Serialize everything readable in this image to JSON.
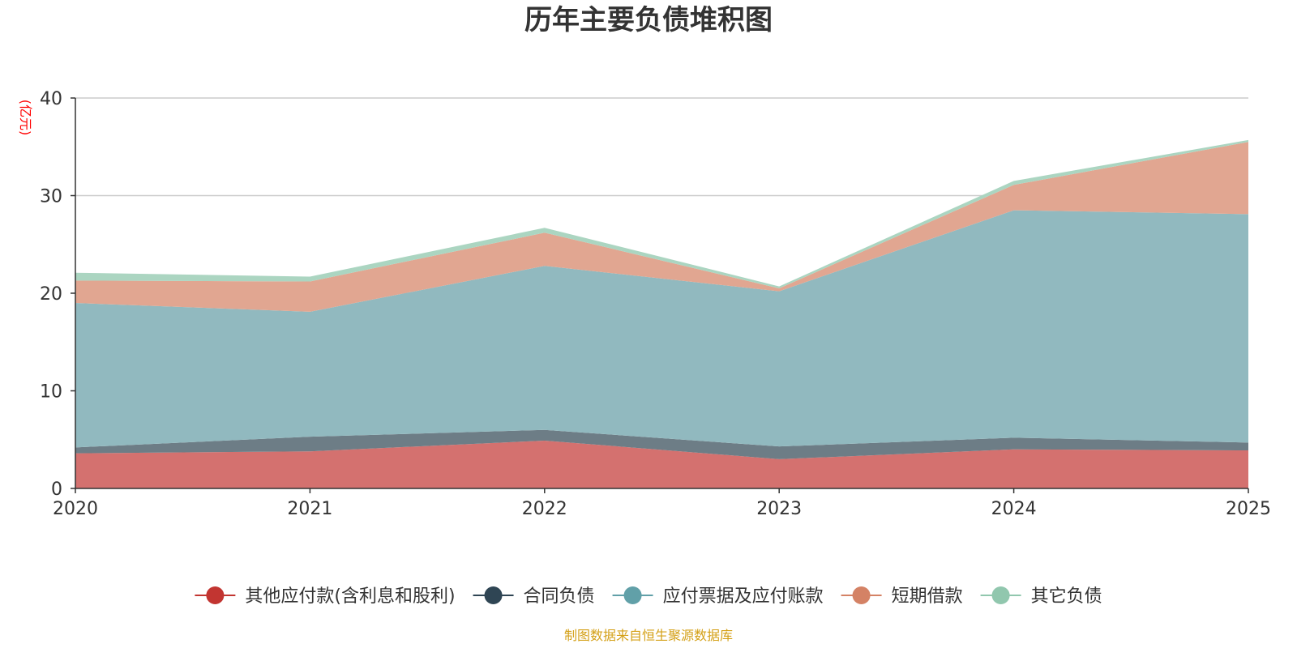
{
  "chart_data": {
    "type": "area",
    "stacked": true,
    "title": "历年主要负债堆积图",
    "ylabel": "(亿元)",
    "xlabel": "",
    "ylim": [
      0,
      40
    ],
    "y_ticks": [
      "0",
      "10",
      "20",
      "30",
      "40"
    ],
    "categories": [
      "2020",
      "2021",
      "2022",
      "2023",
      "2024",
      "2025"
    ],
    "grid": true,
    "legend_position": "bottom",
    "series": [
      {
        "name": "其他应付款(含利息和股利)",
        "color": "#c23531",
        "fill": "#d4716f",
        "values": [
          3.6,
          3.8,
          4.9,
          3.0,
          4.0,
          3.9
        ]
      },
      {
        "name": "合同负债",
        "color": "#2f4554",
        "fill": "#6d7d86",
        "values": [
          0.6,
          1.5,
          1.1,
          1.3,
          1.2,
          0.8
        ]
      },
      {
        "name": "应付票据及应付账款",
        "color": "#61a0a8",
        "fill": "#91b9bf",
        "values": [
          14.8,
          12.8,
          16.8,
          15.9,
          23.3,
          23.4
        ]
      },
      {
        "name": "短期借款",
        "color": "#d48265",
        "fill": "#e1a691",
        "values": [
          2.3,
          3.1,
          3.4,
          0.3,
          2.6,
          7.4
        ]
      },
      {
        "name": "其它负债",
        "color": "#91c7ae",
        "fill": "#abd5c1",
        "values": [
          0.8,
          0.5,
          0.5,
          0.2,
          0.4,
          0.2
        ]
      }
    ],
    "source": "制图数据来自恒生聚源数据库"
  }
}
